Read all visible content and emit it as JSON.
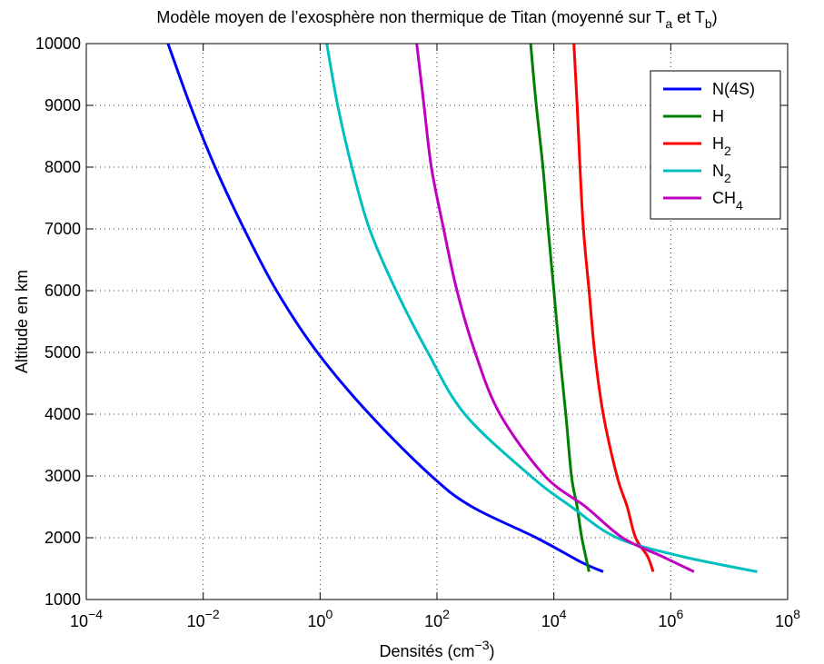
{
  "chart_data": {
    "type": "line",
    "title": {
      "text": "Modèle moyen de l’exosphère non thermique de Titan (moyenné sur T",
      "sub_a": "a",
      "mid": " et T",
      "sub_b": "b",
      "end": ")"
    },
    "xlabel": {
      "text": "Densités (cm",
      "sup": "−3",
      "end": ")"
    },
    "ylabel": "Altitude en km",
    "x_scale": "log",
    "xlim": [
      0.0001,
      100000000
    ],
    "ylim": [
      1000,
      10000
    ],
    "grid": true,
    "legend_position": "top-right",
    "x_ticks": [
      {
        "base": "10",
        "exp": "−4",
        "value": 0.0001
      },
      {
        "base": "10",
        "exp": "−2",
        "value": 0.01
      },
      {
        "base": "10",
        "exp": "0",
        "value": 1
      },
      {
        "base": "10",
        "exp": "2",
        "value": 100
      },
      {
        "base": "10",
        "exp": "4",
        "value": 10000
      },
      {
        "base": "10",
        "exp": "6",
        "value": 1000000
      },
      {
        "base": "10",
        "exp": "8",
        "value": 100000000
      }
    ],
    "y_ticks": [
      "1000",
      "2000",
      "3000",
      "4000",
      "5000",
      "6000",
      "7000",
      "8000",
      "9000",
      "10000"
    ],
    "series": [
      {
        "name": "N(4S)",
        "name_base": "N(4S)",
        "name_sub": "",
        "color": "#0000ff",
        "points": [
          [
            70000,
            1450
          ],
          [
            30000,
            1600
          ],
          [
            5000,
            2000
          ],
          [
            400,
            2500
          ],
          [
            80,
            3000
          ],
          [
            7,
            4000
          ],
          [
            0.9,
            5000
          ],
          [
            0.18,
            6000
          ],
          [
            0.05,
            7000
          ],
          [
            0.016,
            8000
          ],
          [
            0.006,
            9000
          ],
          [
            0.0025,
            10000
          ]
        ]
      },
      {
        "name": "H",
        "name_base": "H",
        "name_sub": "",
        "color": "#008000",
        "points": [
          [
            40000,
            1450
          ],
          [
            30000,
            2000
          ],
          [
            25000,
            2500
          ],
          [
            20000,
            3000
          ],
          [
            16000,
            4000
          ],
          [
            12500,
            5000
          ],
          [
            10000,
            6000
          ],
          [
            8000,
            7000
          ],
          [
            6500,
            8000
          ],
          [
            5000,
            9000
          ],
          [
            4000,
            10000
          ]
        ]
      },
      {
        "name": "H2",
        "name_base": "H",
        "name_sub": "2",
        "color": "#ff0000",
        "points": [
          [
            500000,
            1450
          ],
          [
            400000,
            1700
          ],
          [
            250000,
            2000
          ],
          [
            180000,
            2500
          ],
          [
            120000,
            3000
          ],
          [
            70000,
            4000
          ],
          [
            50000,
            5000
          ],
          [
            40000,
            6000
          ],
          [
            32000,
            7000
          ],
          [
            28000,
            8000
          ],
          [
            25000,
            9000
          ],
          [
            22000,
            10000
          ]
        ]
      },
      {
        "name": "N2",
        "name_base": "N",
        "name_sub": "2",
        "color": "#00bfbf",
        "points": [
          [
            30000000,
            1450
          ],
          [
            1500000,
            1700
          ],
          [
            120000,
            2000
          ],
          [
            20000,
            2500
          ],
          [
            4000,
            3000
          ],
          [
            300,
            4000
          ],
          [
            70,
            5000
          ],
          [
            20,
            6000
          ],
          [
            7,
            7000
          ],
          [
            3.5,
            8000
          ],
          [
            2,
            9000
          ],
          [
            1.3,
            10000
          ]
        ]
      },
      {
        "name": "CH4",
        "name_base": "CH",
        "name_sub": "4",
        "color": "#bf00bf",
        "points": [
          [
            2500000,
            1450
          ],
          [
            700000,
            1700
          ],
          [
            150000,
            2000
          ],
          [
            35000,
            2500
          ],
          [
            7000,
            3000
          ],
          [
            1200,
            4000
          ],
          [
            450,
            5000
          ],
          [
            220,
            6000
          ],
          [
            130,
            7000
          ],
          [
            80,
            8000
          ],
          [
            60,
            9000
          ],
          [
            45,
            10000
          ]
        ]
      }
    ]
  }
}
